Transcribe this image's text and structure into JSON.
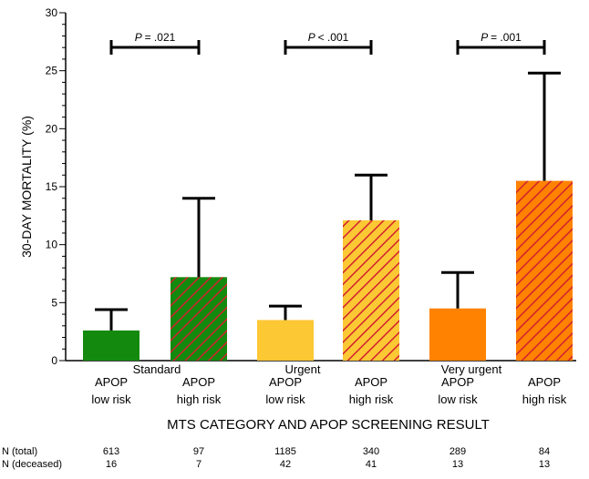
{
  "chart_data": {
    "type": "bar",
    "ylabel": "30-DAY MORTALITY (%)",
    "xlabel": "MTS CATEGORY AND APOP SCREENING RESULT",
    "ylim": [
      0,
      30
    ],
    "yticks": [
      "0",
      "5",
      "10",
      "15",
      "20",
      "25",
      "30"
    ],
    "groups": [
      {
        "name": "Standard",
        "p_label": "= .021",
        "bars": [
          {
            "risk_line1": "APOP",
            "risk_line2": "low risk",
            "value": 2.6,
            "error_upper": 4.4,
            "color": "#138a0e",
            "hatched": false,
            "n_total": "613",
            "n_deceased": "16"
          },
          {
            "risk_line1": "APOP",
            "risk_line2": "high risk",
            "value": 7.2,
            "error_upper": 14.0,
            "color": "#138a0e",
            "hatched": true,
            "n_total": "97",
            "n_deceased": "7"
          }
        ]
      },
      {
        "name": "Urgent",
        "p_label": "< .001",
        "bars": [
          {
            "risk_line1": "APOP",
            "risk_line2": "low risk",
            "value": 3.5,
            "error_upper": 4.7,
            "color": "#fcc834",
            "hatched": false,
            "n_total": "1185",
            "n_deceased": "42"
          },
          {
            "risk_line1": "APOP",
            "risk_line2": "high risk",
            "value": 12.1,
            "error_upper": 16.0,
            "color": "#fcc834",
            "hatched": true,
            "n_total": "340",
            "n_deceased": "41"
          }
        ]
      },
      {
        "name": "Very urgent",
        "p_label": "= .001",
        "bars": [
          {
            "risk_line1": "APOP",
            "risk_line2": "low risk",
            "value": 4.5,
            "error_upper": 7.6,
            "color": "#ff8200",
            "hatched": false,
            "n_total": "289",
            "n_deceased": "13"
          },
          {
            "risk_line1": "APOP",
            "risk_line2": "high risk",
            "value": 15.5,
            "error_upper": 24.8,
            "color": "#ff8200",
            "hatched": true,
            "n_total": "84",
            "n_deceased": "13"
          }
        ]
      }
    ],
    "hatch_color": "#d2202f",
    "p_symbol": "P",
    "n_rows": [
      {
        "label": "N (total)",
        "key": "n_total"
      },
      {
        "label": "N (deceased)",
        "key": "n_deceased"
      }
    ]
  }
}
